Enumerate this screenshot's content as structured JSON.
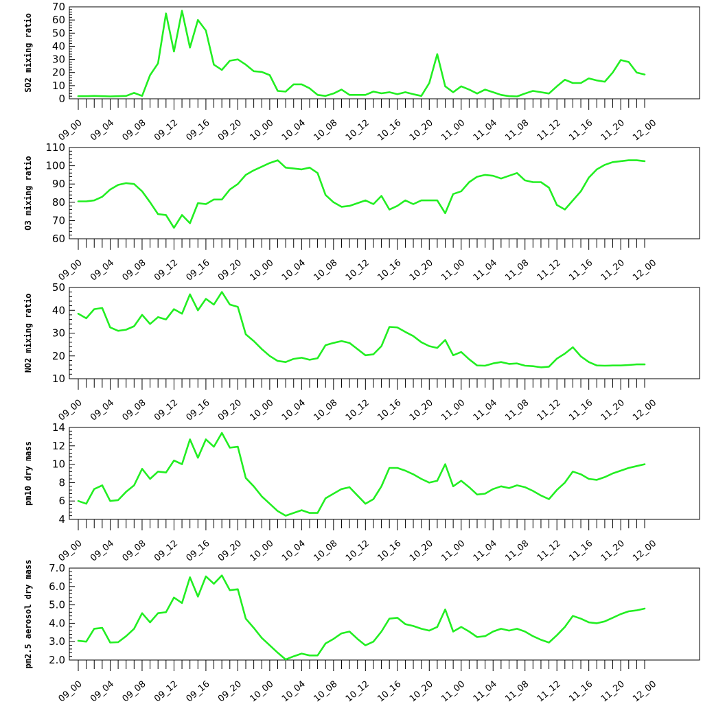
{
  "chart_data": [
    {
      "type": "line",
      "ylabel": "SO2 mixing ratio",
      "ylim": [
        0,
        70
      ],
      "yticks": [
        "0",
        "10",
        "20",
        "30",
        "40",
        "50",
        "60",
        "70"
      ],
      "xticks": [
        "09_00",
        "09_04",
        "09_08",
        "09_12",
        "09_16",
        "09_20",
        "10_00",
        "10_04",
        "10_08",
        "10_12",
        "10_16",
        "10_20",
        "11_00",
        "11_04",
        "11_08",
        "11_12",
        "11_16",
        "11_20",
        "12_00"
      ],
      "line_color": "#22ee22",
      "values": [
        2,
        2,
        2.2,
        2,
        1.8,
        2,
        2.2,
        4.5,
        2.2,
        18,
        27,
        65,
        36,
        67,
        39,
        60,
        52,
        26,
        22,
        29,
        30,
        26,
        21,
        20.5,
        18,
        6,
        5.5,
        11,
        11,
        8,
        3,
        2.2,
        4,
        7,
        3,
        3,
        3,
        5.5,
        4.2,
        5,
        3.5,
        5,
        3.5,
        2.2,
        12,
        34,
        9.5,
        5,
        9.5,
        7,
        4,
        7,
        5,
        3,
        2,
        1.8,
        4,
        6,
        5,
        4,
        9.5,
        14.5,
        12,
        12,
        15.5,
        14,
        13,
        20,
        29.5,
        28,
        20,
        18.5
      ]
    },
    {
      "type": "line",
      "ylabel": "O3 mixing ratio",
      "ylim": [
        60,
        110
      ],
      "yticks": [
        "60",
        "70",
        "80",
        "90",
        "100",
        "110"
      ],
      "xticks": [
        "09_00",
        "09_04",
        "09_08",
        "09_12",
        "09_16",
        "09_20",
        "10_00",
        "10_04",
        "10_08",
        "10_12",
        "10_16",
        "10_20",
        "11_00",
        "11_04",
        "11_08",
        "11_12",
        "11_16",
        "11_20",
        "12_00"
      ],
      "line_color": "#22ee22",
      "values": [
        80.5,
        80.5,
        81,
        83,
        87,
        89.5,
        90.5,
        90,
        86,
        80,
        73.5,
        73,
        66,
        73,
        68.5,
        79.5,
        79,
        81.5,
        81.5,
        87,
        90,
        95,
        97.5,
        99.5,
        101.5,
        103,
        99,
        98.5,
        98,
        99,
        96,
        84,
        80,
        77.5,
        78,
        79.5,
        81,
        79,
        83.5,
        76,
        78,
        81,
        79,
        81,
        81,
        81,
        74,
        84.5,
        86,
        91,
        94,
        95,
        94.5,
        93,
        94.5,
        96,
        92,
        91,
        91,
        88,
        78.5,
        76,
        81,
        86,
        93.5,
        98,
        100.5,
        102,
        102.5,
        103,
        103,
        102.5
      ]
    },
    {
      "type": "line",
      "ylabel": "NO2 mixing ratio",
      "ylim": [
        10,
        50
      ],
      "yticks": [
        "10",
        "20",
        "30",
        "40",
        "50"
      ],
      "xticks": [
        "09_00",
        "09_04",
        "09_08",
        "09_12",
        "09_16",
        "09_20",
        "10_00",
        "10_04",
        "10_08",
        "10_12",
        "10_16",
        "10_20",
        "11_00",
        "11_04",
        "11_08",
        "11_12",
        "11_16",
        "11_20",
        "12_00"
      ],
      "line_color": "#22ee22",
      "values": [
        38.5,
        36.5,
        40.5,
        41,
        32.5,
        31,
        31.5,
        33,
        38,
        34,
        37,
        36,
        40.5,
        38.5,
        47,
        40,
        45,
        42.5,
        48,
        42.5,
        41.5,
        29.5,
        26.5,
        23,
        20,
        17.8,
        17.3,
        18.7,
        19.2,
        18.3,
        19,
        24.7,
        25.7,
        26.5,
        25.7,
        23,
        20.3,
        20.7,
        24.3,
        32.7,
        32.5,
        30.5,
        28.7,
        26,
        24.3,
        23.5,
        27,
        20.3,
        21.7,
        18.5,
        15.8,
        15.7,
        16.7,
        17.3,
        16.5,
        16.7,
        15.7,
        15.5,
        15,
        15.3,
        18.8,
        21,
        23.8,
        19.8,
        17.3,
        15.8,
        15.7,
        15.8,
        15.8,
        16,
        16.3,
        16.3
      ]
    },
    {
      "type": "line",
      "ylabel": "pm10 dry mass",
      "ylim": [
        4,
        14
      ],
      "yticks": [
        "4",
        "6",
        "8",
        "10",
        "12",
        "14"
      ],
      "xticks": [
        "09_00",
        "09_04",
        "09_08",
        "09_12",
        "09_16",
        "09_20",
        "10_00",
        "10_04",
        "10_08",
        "10_12",
        "10_16",
        "10_20",
        "11_00",
        "11_04",
        "11_08",
        "11_12",
        "11_16",
        "11_20",
        "12_00"
      ],
      "line_color": "#22ee22",
      "values": [
        6,
        5.7,
        7.3,
        7.7,
        6,
        6.1,
        7,
        7.7,
        9.5,
        8.4,
        9.2,
        9.1,
        10.4,
        10,
        12.7,
        10.7,
        12.7,
        11.9,
        13.4,
        11.8,
        11.9,
        8.5,
        7.6,
        6.5,
        5.7,
        4.9,
        4.4,
        4.7,
        5,
        4.7,
        4.7,
        6.3,
        6.8,
        7.3,
        7.5,
        6.6,
        5.7,
        6.2,
        7.6,
        9.6,
        9.6,
        9.3,
        8.9,
        8.4,
        8,
        8.2,
        10,
        7.6,
        8.2,
        7.5,
        6.7,
        6.8,
        7.3,
        7.6,
        7.4,
        7.7,
        7.5,
        7.1,
        6.6,
        6.2,
        7.2,
        8,
        9.2,
        8.9,
        8.4,
        8.3,
        8.6,
        9,
        9.3,
        9.6,
        9.8,
        10
      ]
    },
    {
      "type": "line",
      "ylabel": "pm2.5 aerosol dry mass",
      "ylim": [
        2,
        7
      ],
      "yticks": [
        "2.0",
        "3.0",
        "4.0",
        "5.0",
        "6.0",
        "7.0"
      ],
      "xticks": [
        "09_00",
        "09_04",
        "09_08",
        "09_12",
        "09_16",
        "09_20",
        "10_00",
        "10_04",
        "10_08",
        "10_12",
        "10_16",
        "10_20",
        "11_00",
        "11_04",
        "11_08",
        "11_12",
        "11_16",
        "11_20",
        "12_00"
      ],
      "line_color": "#22ee22",
      "values": [
        3.05,
        3,
        3.7,
        3.75,
        2.95,
        2.97,
        3.3,
        3.7,
        4.55,
        4.05,
        4.55,
        4.6,
        5.4,
        5.1,
        6.5,
        5.45,
        6.55,
        6.15,
        6.6,
        5.8,
        5.85,
        4.25,
        3.75,
        3.2,
        2.8,
        2.4,
        2.03,
        2.2,
        2.35,
        2.25,
        2.25,
        2.9,
        3.15,
        3.45,
        3.55,
        3.15,
        2.8,
        3,
        3.55,
        4.25,
        4.3,
        3.95,
        3.85,
        3.7,
        3.6,
        3.8,
        4.75,
        3.55,
        3.8,
        3.55,
        3.25,
        3.3,
        3.55,
        3.7,
        3.6,
        3.7,
        3.55,
        3.3,
        3.1,
        2.95,
        3.35,
        3.8,
        4.4,
        4.25,
        4.05,
        4,
        4.1,
        4.3,
        4.5,
        4.65,
        4.7,
        4.8
      ]
    }
  ]
}
